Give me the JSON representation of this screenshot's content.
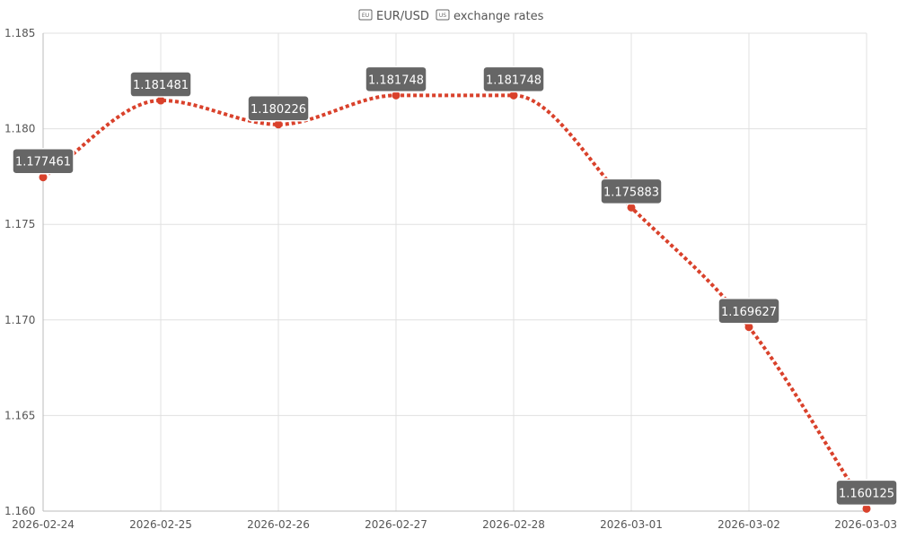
{
  "chart_data": {
    "type": "line",
    "title": "EUR/USD exchange rates",
    "title_parts": {
      "icon_left": "eu-flag-icon",
      "pair": "EUR/USD",
      "icon_right": "us-flag-icon",
      "suffix": "exchange rates"
    },
    "x": [
      "2026-02-24",
      "2026-02-25",
      "2026-02-26",
      "2026-02-27",
      "2026-02-28",
      "2026-03-01",
      "2026-03-02",
      "2026-03-03"
    ],
    "series": [
      {
        "values": [
          1.177461,
          1.181481,
          1.180226,
          1.181748,
          1.181748,
          1.175883,
          1.169627,
          1.160125
        ],
        "labels": [
          "1.177461",
          "1.181481",
          "1.180226",
          "1.181748",
          "1.181748",
          "1.175883",
          "1.169627",
          "1.160125"
        ],
        "color": "#d9412b",
        "line_style": "dotted",
        "smooth": true
      }
    ],
    "ylim": [
      1.16,
      1.185
    ],
    "yticks": [
      "1.160",
      "1.165",
      "1.170",
      "1.175",
      "1.180",
      "1.185"
    ],
    "ytick_values": [
      1.16,
      1.165,
      1.17,
      1.175,
      1.18,
      1.185
    ],
    "grid": true,
    "xlabel": "",
    "ylabel": "",
    "colors": {
      "line": "#d9412b",
      "label_bg": "#666666",
      "label_text": "#ffffff",
      "grid": "#e0e0e0",
      "tick_text": "#555555"
    }
  }
}
